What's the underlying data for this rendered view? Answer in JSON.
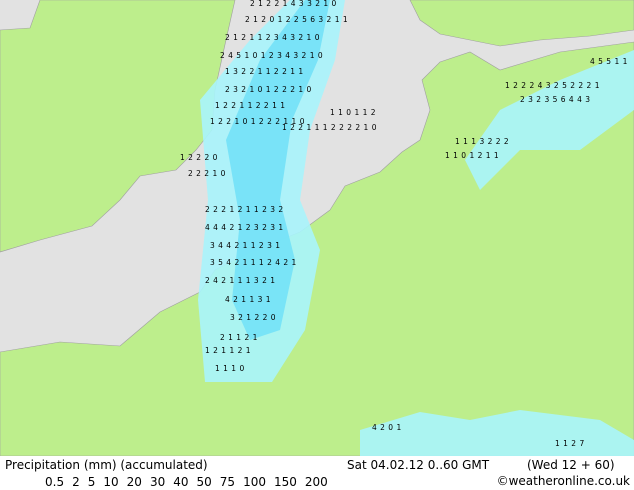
{
  "footer": {
    "title": "Precipitation (mm) (accumulated)",
    "valid": "Sat 04.02.12 0..60 GMT",
    "run": "(Wed 12 + 60)",
    "credit": "©weatheronline.co.uk",
    "legend": [
      {
        "label": "0.5",
        "color": "#a8f4fc"
      },
      {
        "label": "2",
        "color": "#70e0f8"
      },
      {
        "label": "5",
        "color": "#40c8f0"
      },
      {
        "label": "10",
        "color": "#20a8e8"
      },
      {
        "label": "20",
        "color": "#1890e0"
      },
      {
        "label": "30",
        "color": "#1070d0"
      },
      {
        "label": "40",
        "color": "#1050b8"
      },
      {
        "label": "50",
        "color": "#7030b0"
      },
      {
        "label": "75",
        "color": "#c020c0"
      },
      {
        "label": "100",
        "color": "#e030d0"
      },
      {
        "label": "150",
        "color": "#d020b0"
      },
      {
        "label": "200",
        "color": "#c818a8"
      }
    ]
  },
  "map_labels": [
    "2 1 2 2 1 4 3 3 2 1 0",
    "2 1 2 0 1 2 2 5 6 3 2 1 1",
    "2 1 2 1 1 2 3 4 3 2 1 0",
    "2 4 5 1 0 1 2 3 4 3 2 1 0",
    "1 3 2 2 1 1 2 2 1 1",
    "2 3 2 1 0 1 2 2 2 1 0",
    "1 2 2 1 1 2 2 1 1",
    "1 2 2 1 0 1 2 2 2 1 1 0",
    "1 2 2 1 1 1 2 2 2 2 1 0",
    "1 2 2 2 0",
    "2 2 2 1 0",
    "2 2 2 1 2 1 1 2 3 2",
    "4 4 4 2 1 2 3 2 3 1",
    "3 4 4 2 1 1 2 3 1",
    "3 5 4 2 1 1 1 2 4 2 1",
    "2 4 2 1 1 1 3 2 1",
    "4 2 1 1 3 1",
    "3 2 1 2 2 0",
    "2 1 1 2 1",
    "1 2 1 1 2 1",
    "1 1 1 0",
    "1 1 0 1 1 2",
    "1 2 2 2 4 3 2 5 2 2 2 1",
    "2 3 2 3 5 6 4 4 3",
    "1 1 1 3 2 2 2",
    "1 1 0 1 2 1 1",
    "4 2 0 1",
    "4 5 5 1 1",
    "1 1 2 7"
  ]
}
